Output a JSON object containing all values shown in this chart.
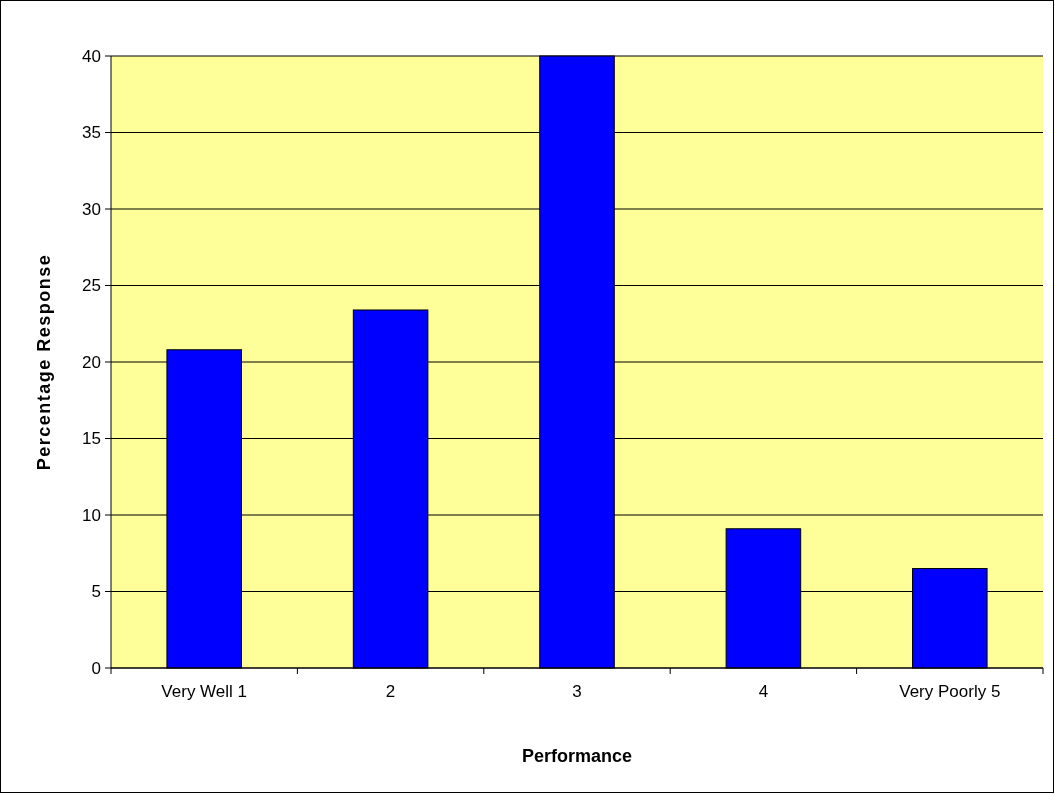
{
  "chart_data": {
    "type": "bar",
    "xlabel": "Performance",
    "ylabel": "Percentage Response",
    "categories": [
      "Very Well 1",
      "2",
      "3",
      "4",
      "Very Poorly 5"
    ],
    "values": [
      20.8,
      23.4,
      40,
      9.1,
      6.5
    ],
    "color": "#0000ff",
    "ylim": [
      0,
      40
    ],
    "yticks": [
      0,
      5,
      10,
      15,
      20,
      25,
      30,
      35,
      40
    ],
    "grid": "y"
  }
}
